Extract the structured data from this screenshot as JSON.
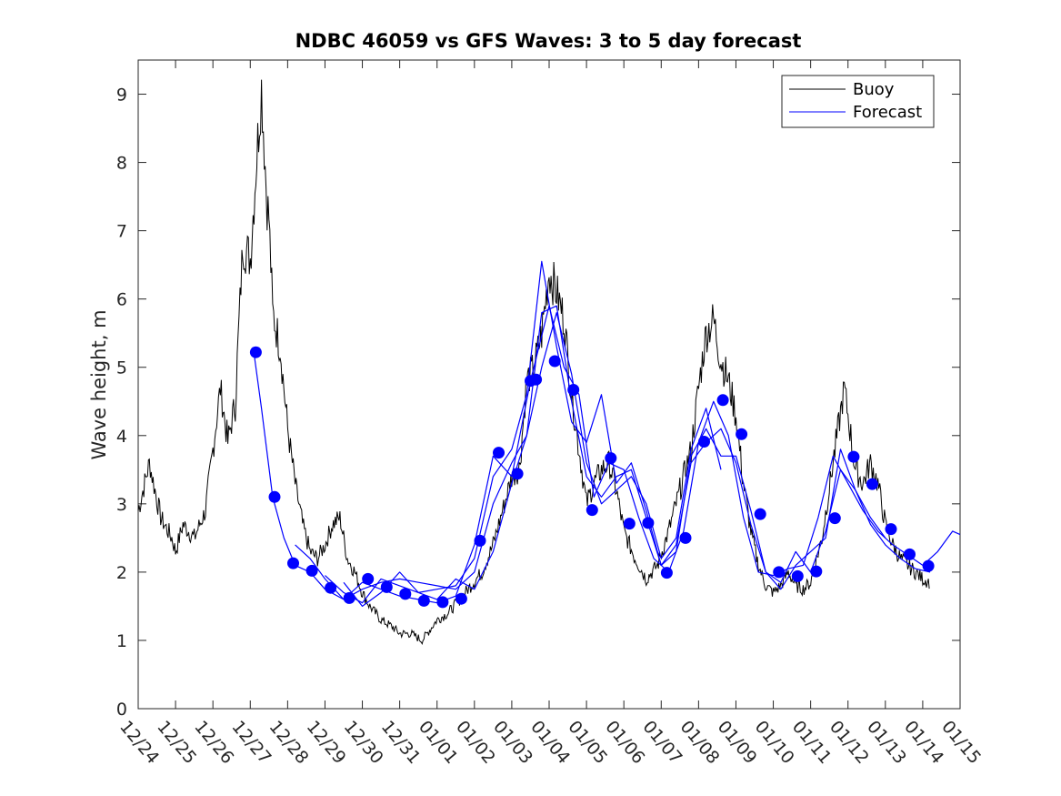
{
  "chart_data": {
    "type": "line",
    "title": "NDBC 46059 vs GFS Waves: 3 to 5 day forecast",
    "xlabel": "",
    "ylabel": "Wave height, m",
    "ylim": [
      0,
      9.5
    ],
    "xlim": [
      -1,
      21
    ],
    "yticks": [
      0,
      1,
      2,
      3,
      4,
      5,
      6,
      7,
      8,
      9
    ],
    "xtick_labels": [
      "12/24",
      "12/25",
      "12/26",
      "12/27",
      "12/28",
      "12/29",
      "12/30",
      "12/31",
      "01/01",
      "01/02",
      "01/03",
      "01/04",
      "01/05",
      "01/06",
      "01/07",
      "01/08",
      "01/09",
      "01/10",
      "01/11",
      "01/12",
      "01/13",
      "01/14",
      "01/15"
    ],
    "legend": {
      "position": "top-right",
      "entries": [
        "Buoy",
        "Forecast"
      ]
    },
    "colors": {
      "buoy": "#000000",
      "forecast": "#0000ff",
      "axes": "#262626"
    },
    "series": [
      {
        "name": "Buoy",
        "x": [
          -1,
          -0.7,
          -0.4,
          -0.1,
          0.0,
          0.2,
          0.5,
          0.8,
          1.0,
          1.2,
          1.4,
          1.6,
          1.8,
          2.0,
          2.2,
          2.3,
          2.45,
          2.5,
          2.6,
          2.8,
          3.0,
          3.2,
          3.4,
          3.6,
          3.8,
          4.0,
          4.2,
          4.4,
          4.6,
          4.8,
          5.0,
          5.2,
          5.5,
          5.8,
          6.0,
          6.3,
          6.6,
          7.0,
          7.3,
          7.6,
          7.9,
          8.2,
          8.5,
          8.8,
          9.0,
          9.2,
          9.4,
          9.6,
          9.8,
          10.0,
          10.2,
          10.4,
          10.6,
          10.8,
          11.0,
          11.2,
          11.4,
          11.6,
          11.8,
          12.0,
          12.3,
          12.6,
          12.9,
          13.2,
          13.5,
          13.8,
          14.0,
          14.2,
          14.4,
          14.6,
          14.8,
          15.0,
          15.2,
          15.4,
          15.6,
          15.8,
          16.0,
          16.2,
          16.4,
          16.6,
          16.8,
          17.0,
          17.3,
          17.6,
          17.9,
          18.2,
          18.4,
          18.6,
          18.8,
          19.0,
          19.2,
          19.4,
          19.6,
          19.8,
          20.0,
          20.2
        ],
        "y": [
          2.9,
          3.6,
          2.8,
          2.5,
          2.3,
          2.7,
          2.5,
          2.9,
          3.8,
          4.7,
          3.9,
          4.5,
          6.8,
          6.6,
          8.3,
          9.1,
          7.4,
          7.2,
          5.8,
          5.3,
          4.1,
          3.3,
          2.7,
          2.3,
          2.2,
          2.4,
          2.7,
          2.8,
          2.2,
          2.0,
          1.7,
          1.5,
          1.3,
          1.2,
          1.1,
          1.1,
          1.0,
          1.3,
          1.4,
          1.6,
          1.8,
          2.0,
          2.4,
          3.0,
          3.4,
          3.5,
          4.8,
          5.0,
          5.5,
          6.4,
          6.1,
          5.7,
          4.6,
          3.8,
          3.0,
          3.3,
          3.5,
          3.6,
          3.2,
          2.6,
          2.2,
          1.9,
          2.1,
          2.6,
          3.2,
          3.8,
          4.7,
          5.5,
          5.7,
          5.1,
          4.8,
          4.3,
          3.3,
          2.6,
          2.1,
          1.8,
          1.7,
          1.8,
          2.0,
          1.8,
          1.75,
          1.85,
          2.5,
          3.6,
          4.7,
          3.5,
          3.3,
          3.6,
          3.3,
          2.7,
          2.4,
          2.2,
          2.1,
          2.0,
          1.9,
          1.85
        ]
      },
      {
        "name": "Forecast",
        "runs": [
          {
            "x": [
              2.1,
              2.3,
              2.6,
              2.9,
              3.2,
              3.6,
              4.0,
              4.5,
              5.0,
              5.5,
              6.0,
              6.5,
              7.0,
              7.5,
              8.0,
              8.5,
              9.0,
              9.5,
              10.0,
              10.4,
              10.8,
              11.2,
              11.6,
              12.0,
              12.4,
              12.8,
              13.2,
              13.6,
              14.0,
              14.4,
              14.8,
              15.2,
              15.6,
              16.0,
              16.4,
              16.8,
              17.2,
              17.6,
              18.0,
              18.4,
              18.8,
              19.2,
              19.6,
              20.0,
              20.4,
              20.8,
              21.0
            ],
            "y": [
              5.2,
              4.4,
              3.1,
              2.5,
              2.1,
              2.0,
              1.75,
              1.6,
              1.85,
              1.75,
              1.65,
              1.6,
              1.55,
              1.65,
              2.4,
              3.7,
              3.4,
              4.8,
              5.9,
              5.0,
              4.6,
              3.1,
              3.6,
              3.5,
              2.8,
              2.2,
              2.0,
              2.6,
              3.9,
              4.5,
              4.0,
              2.8,
              2.0,
              1.95,
              2.05,
              2.1,
              2.8,
              3.7,
              3.3,
              2.9,
              2.6,
              2.4,
              2.25,
              2.1,
              2.3,
              2.6,
              2.55
            ]
          },
          {
            "x": [
              4.0,
              4.5,
              5.0,
              5.5,
              6.0,
              6.5,
              7.0,
              7.5,
              8.0,
              8.5,
              9.0,
              9.4,
              9.8,
              10.2,
              10.6,
              11.0,
              11.4,
              11.8,
              12.2,
              12.6,
              13.0,
              13.4,
              13.8,
              14.2,
              14.6,
              15.0,
              15.4,
              15.8,
              16.2,
              16.6,
              17.0,
              17.4,
              17.8,
              18.2,
              18.6,
              19.0
            ],
            "y": [
              1.95,
              1.7,
              1.55,
              1.9,
              1.8,
              1.7,
              1.75,
              1.8,
              2.2,
              3.4,
              3.8,
              4.6,
              6.55,
              5.3,
              4.2,
              3.9,
              4.6,
              3.3,
              3.6,
              2.9,
              2.1,
              2.3,
              3.7,
              4.1,
              3.7,
              3.7,
              2.9,
              2.0,
              1.85,
              2.3,
              2.0,
              2.6,
              3.5,
              3.2,
              2.8,
              2.5
            ]
          },
          {
            "x": [
              4.5,
              5.0,
              5.5,
              6.0,
              6.5,
              7.0,
              7.5,
              8.0,
              8.5,
              9.0,
              9.4,
              9.8,
              10.2,
              10.6,
              11.0,
              11.4,
              11.8,
              12.2,
              12.6,
              13.0,
              13.4,
              13.8,
              14.2,
              14.6,
              15.0,
              15.4,
              15.8,
              16.2,
              16.6,
              17.0,
              17.4,
              17.8,
              18.2,
              18.6,
              19.0,
              19.4,
              19.8,
              20.2
            ],
            "y": [
              1.85,
              1.5,
              1.7,
              2.0,
              1.7,
              1.6,
              1.9,
              1.75,
              2.3,
              3.3,
              4.0,
              5.8,
              5.9,
              4.5,
              3.4,
              3.1,
              3.4,
              3.5,
              2.8,
              2.1,
              2.4,
              3.6,
              3.9,
              4.1,
              3.6,
              2.7,
              2.0,
              1.75,
              2.1,
              2.3,
              2.5,
              3.8,
              3.2,
              2.7,
              2.4,
              2.2,
              2.05,
              2.0
            ]
          },
          {
            "x": [
              3.2,
              3.6,
              4.0,
              4.5,
              5.0,
              5.5,
              6.0,
              6.5,
              7.0,
              7.5,
              8.0,
              8.5,
              9.0,
              9.4,
              9.8,
              10.2,
              10.6,
              11.0,
              11.4,
              11.8,
              12.2,
              12.6,
              13.0,
              13.4,
              13.8,
              14.2,
              14.6
            ],
            "y": [
              2.4,
              2.2,
              1.9,
              1.6,
              1.75,
              1.85,
              1.9,
              1.85,
              1.8,
              1.75,
              2.0,
              3.0,
              3.6,
              4.0,
              5.0,
              5.8,
              4.9,
              3.6,
              3.0,
              3.2,
              3.4,
              3.0,
              2.2,
              2.5,
              3.8,
              4.4,
              3.5
            ]
          }
        ],
        "markers": {
          "x": [
            2.15,
            2.65,
            3.15,
            3.65,
            4.15,
            4.65,
            5.15,
            5.65,
            6.15,
            6.65,
            7.15,
            7.65,
            8.15,
            8.65,
            9.15,
            9.5,
            9.65,
            10.15,
            10.65,
            11.15,
            11.65,
            12.15,
            12.65,
            13.15,
            13.65,
            14.15,
            14.65,
            15.15,
            15.65,
            16.15,
            16.65,
            17.15,
            17.65,
            18.15,
            18.65,
            19.15,
            19.65,
            20.15
          ],
          "y": [
            5.22,
            3.1,
            2.13,
            2.02,
            1.77,
            1.62,
            1.9,
            1.78,
            1.68,
            1.58,
            1.56,
            1.61,
            2.46,
            3.75,
            3.44,
            4.8,
            4.82,
            5.09,
            4.67,
            2.91,
            3.67,
            2.71,
            2.72,
            1.99,
            2.5,
            3.91,
            4.52,
            4.02,
            2.85,
            2.0,
            1.94,
            2.01,
            2.79,
            3.69,
            3.29,
            2.63,
            2.26,
            2.09
          ]
        }
      }
    ]
  }
}
